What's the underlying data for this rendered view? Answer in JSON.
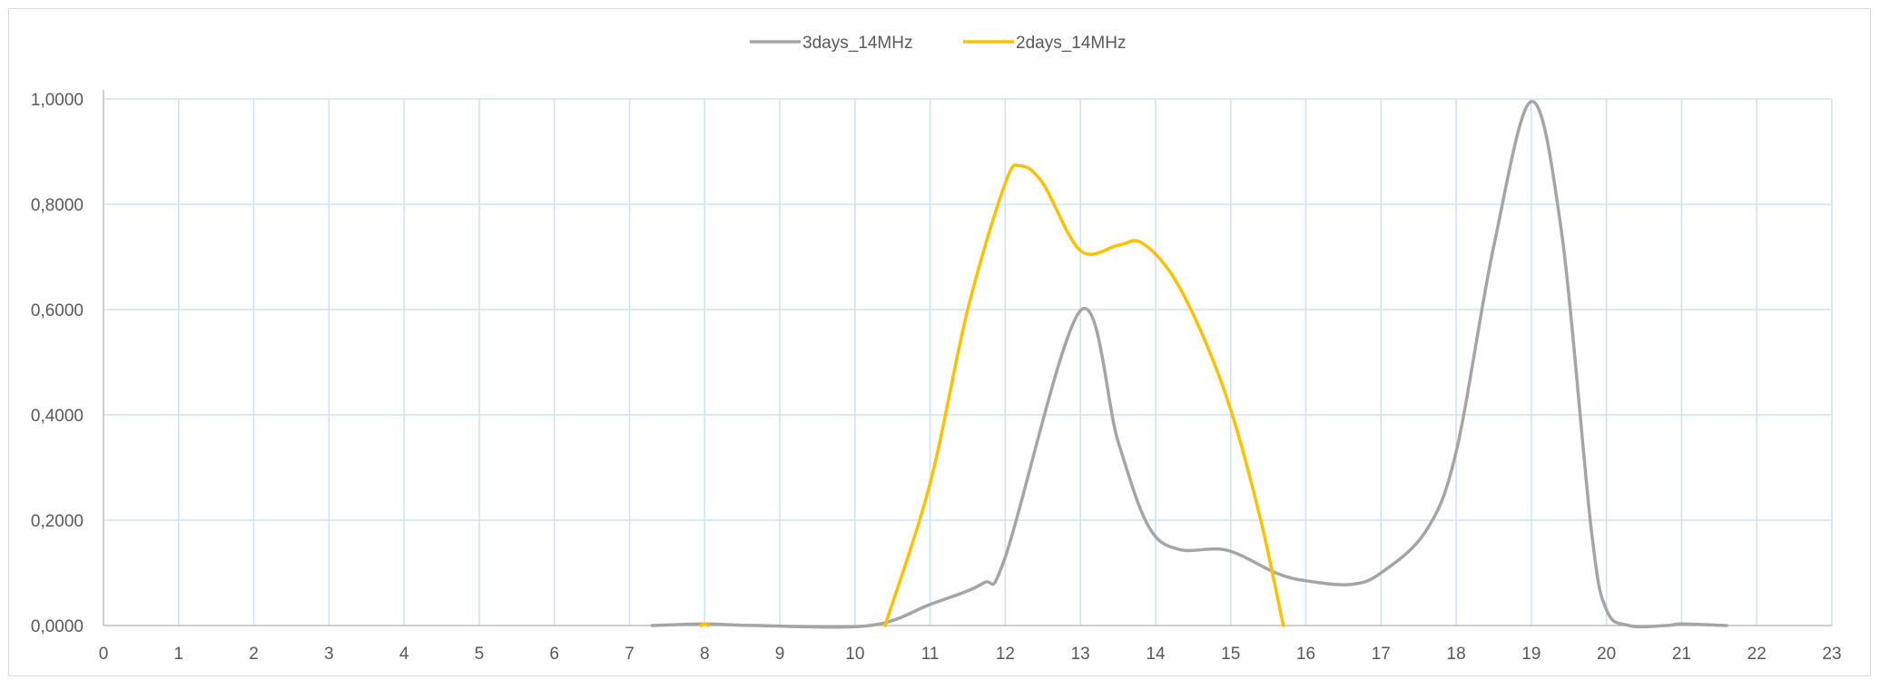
{
  "chart_data": {
    "type": "line",
    "title": "",
    "xlabel": "",
    "ylabel": "",
    "xlim": [
      0,
      23
    ],
    "ylim": [
      0,
      1
    ],
    "x_ticks": [
      "0",
      "1",
      "2",
      "3",
      "4",
      "5",
      "6",
      "7",
      "8",
      "9",
      "10",
      "11",
      "12",
      "13",
      "14",
      "15",
      "16",
      "17",
      "18",
      "19",
      "20",
      "21",
      "22",
      "23"
    ],
    "y_ticks": [
      "0,0000",
      "0,2000",
      "0,4000",
      "0,6000",
      "0,8000",
      "1,0000"
    ],
    "grid": "vertical and horizontal",
    "legend_position": "top-center",
    "series": [
      {
        "name": "3days_14MHz",
        "color": "#a5a5a5",
        "points": [
          [
            7.3,
            0.0
          ],
          [
            8.0,
            0.003
          ],
          [
            8.7,
            0.0
          ],
          [
            10.2,
            0.0
          ],
          [
            11.0,
            0.04
          ],
          [
            11.7,
            0.08
          ],
          [
            12.0,
            0.13
          ],
          [
            13.0,
            0.598
          ],
          [
            13.5,
            0.35
          ],
          [
            13.9,
            0.19
          ],
          [
            14.3,
            0.145
          ],
          [
            14.95,
            0.143
          ],
          [
            15.6,
            0.1
          ],
          [
            16.0,
            0.085
          ],
          [
            16.6,
            0.078
          ],
          [
            17.0,
            0.1
          ],
          [
            17.6,
            0.18
          ],
          [
            18.0,
            0.33
          ],
          [
            18.5,
            0.72
          ],
          [
            19.0,
            0.995
          ],
          [
            19.4,
            0.75
          ],
          [
            19.8,
            0.18
          ],
          [
            20.0,
            0.03
          ],
          [
            20.3,
            0.0
          ],
          [
            20.8,
            0.0
          ],
          [
            21.0,
            0.003
          ],
          [
            21.6,
            0.0
          ]
        ]
      },
      {
        "name": "2days_14MHz",
        "color": "#ffc000",
        "points": [
          [
            7.95,
            0.0
          ],
          [
            8.0,
            0.003
          ],
          [
            8.05,
            0.0
          ]
        ],
        "points_segment_2": [
          [
            10.4,
            0.0
          ],
          [
            11.0,
            0.27
          ],
          [
            11.5,
            0.6
          ],
          [
            12.0,
            0.84
          ],
          [
            12.2,
            0.873
          ],
          [
            12.5,
            0.84
          ],
          [
            13.0,
            0.712
          ],
          [
            13.5,
            0.722
          ],
          [
            13.8,
            0.728
          ],
          [
            14.2,
            0.67
          ],
          [
            14.6,
            0.56
          ],
          [
            15.0,
            0.41
          ],
          [
            15.4,
            0.2
          ],
          [
            15.7,
            0.0
          ]
        ]
      }
    ]
  }
}
